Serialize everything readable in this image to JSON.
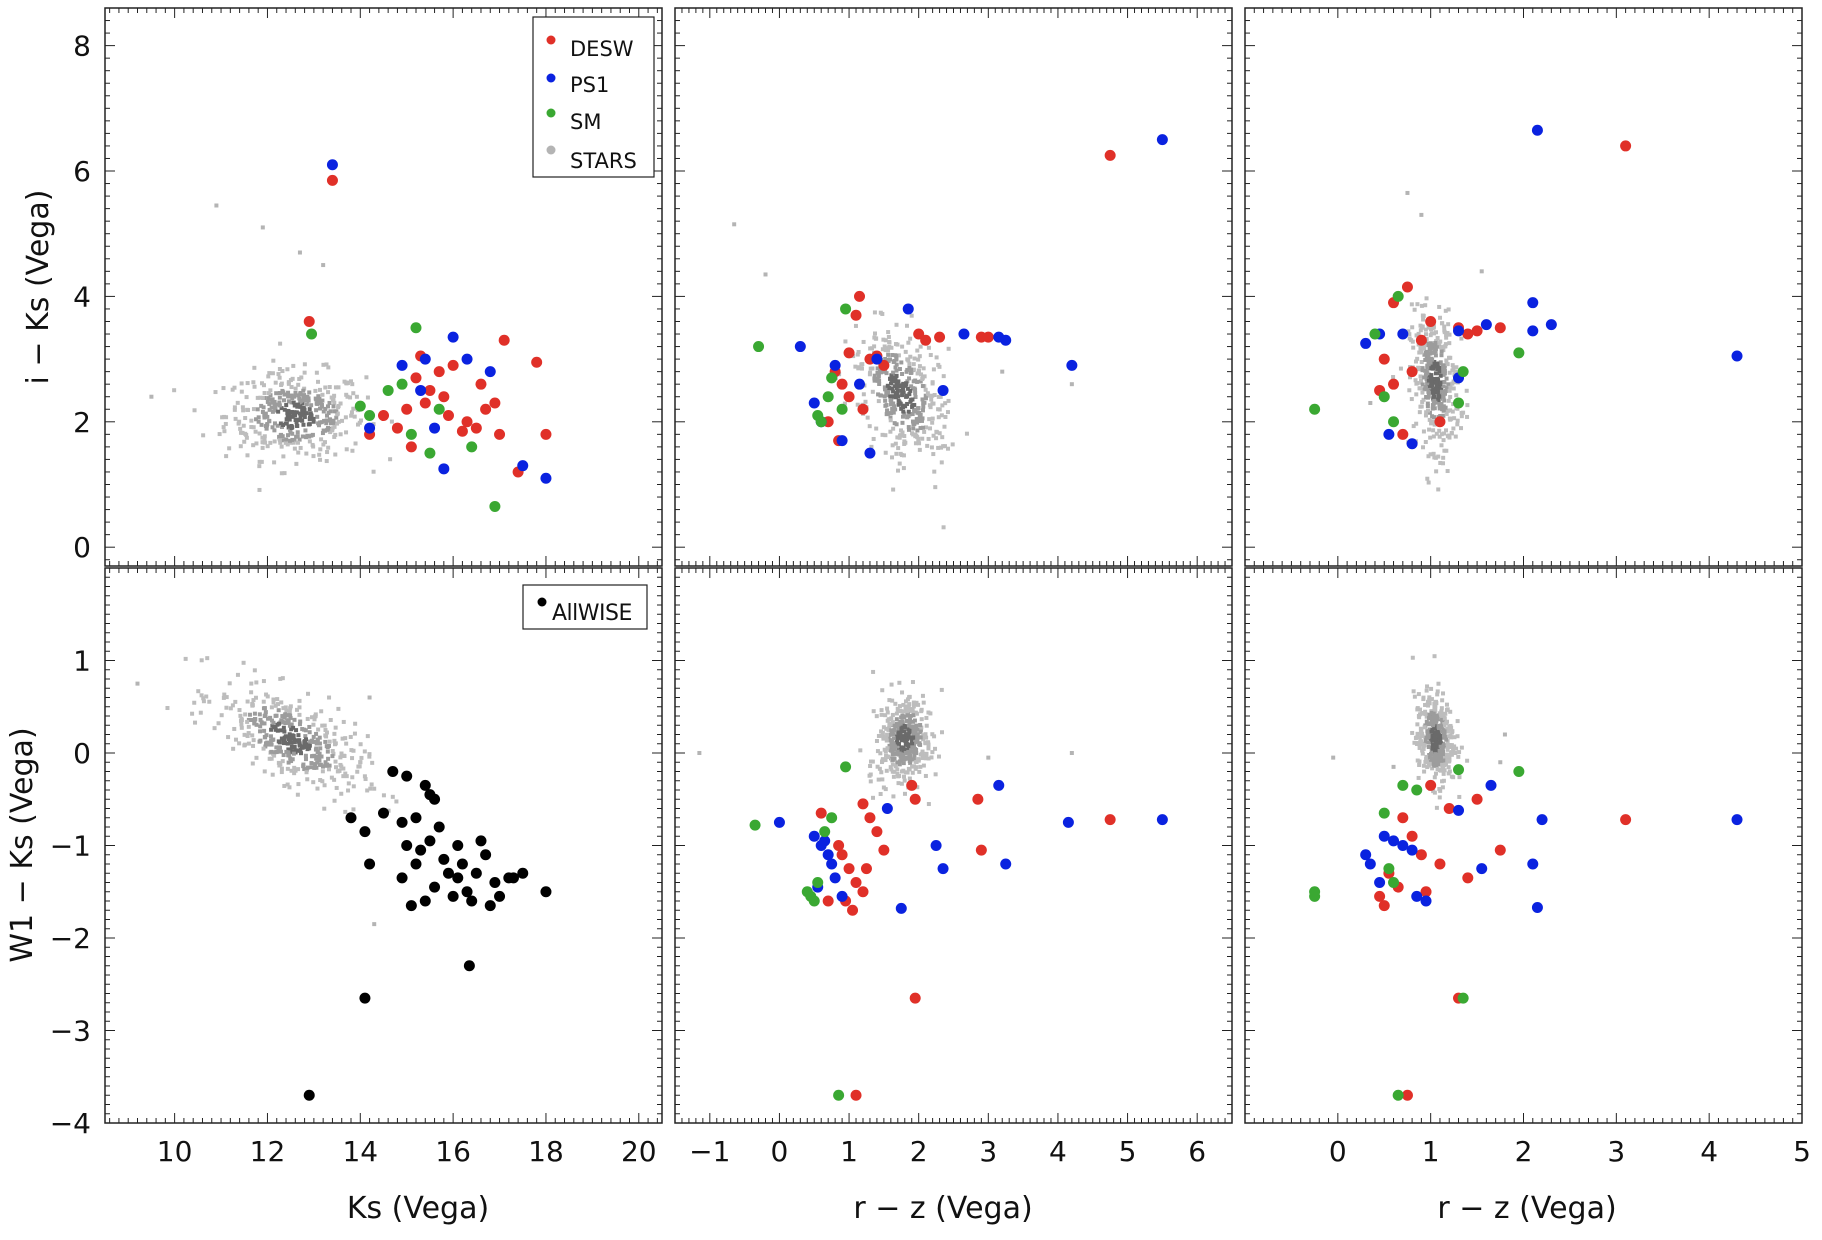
{
  "colors": {
    "DESW": "#e03028",
    "PS1": "#0a22e0",
    "SM": "#3aa832",
    "STARS": "#b4b4b4",
    "AllWISE": "#000000"
  },
  "chart_data": [
    {
      "type": "scatter",
      "panel": "top-left",
      "xlim": [
        8.5,
        20.5
      ],
      "ylim": [
        -0.3,
        8.6
      ],
      "xticks": [
        10,
        12,
        14,
        16,
        18,
        20
      ],
      "yticks": [
        0,
        2,
        4,
        6,
        8
      ],
      "xlabel": "",
      "ylabel": "i − Ks (Vega)",
      "legend": [
        "DESW",
        "PS1",
        "SM",
        "STARS"
      ],
      "legend_position": "top-right",
      "series": [
        {
          "name": "DESW",
          "x": [
            13.4,
            12.9,
            15.2,
            15.5,
            15.8,
            16.3,
            16.7,
            17.0,
            15.0,
            14.5,
            14.2,
            16.0,
            15.3,
            15.7,
            16.5,
            17.1,
            16.9,
            15.1,
            15.9,
            16.2,
            14.8,
            17.8,
            18.0,
            17.4,
            16.6,
            15.4
          ],
          "y": [
            5.85,
            3.6,
            2.7,
            2.5,
            2.4,
            2.0,
            2.2,
            1.8,
            2.2,
            2.1,
            1.8,
            2.9,
            3.05,
            2.8,
            1.9,
            3.3,
            2.3,
            1.6,
            2.1,
            1.85,
            1.9,
            2.95,
            1.8,
            1.2,
            2.6,
            2.3
          ]
        },
        {
          "name": "PS1",
          "x": [
            13.4,
            16.0,
            16.8,
            14.9,
            15.3,
            15.6,
            16.3,
            17.5,
            18.0,
            15.8,
            15.4,
            14.2
          ],
          "y": [
            6.1,
            3.35,
            2.8,
            2.9,
            2.5,
            1.9,
            3.0,
            1.3,
            1.1,
            1.25,
            3.0,
            1.9
          ]
        },
        {
          "name": "SM",
          "x": [
            12.95,
            15.2,
            14.0,
            14.2,
            14.6,
            14.9,
            15.1,
            15.5,
            16.4,
            16.9,
            15.7
          ],
          "y": [
            3.4,
            3.5,
            2.25,
            2.1,
            2.5,
            2.6,
            1.8,
            1.5,
            1.6,
            0.65,
            2.2
          ]
        },
        {
          "name": "STARS",
          "x": [
            10.9,
            11.9,
            12.7,
            13.2,
            9.5
          ],
          "y": [
            5.45,
            5.1,
            4.7,
            4.5,
            2.4
          ]
        }
      ]
    },
    {
      "type": "scatter",
      "panel": "top-middle",
      "xlim": [
        -1.5,
        6.5
      ],
      "ylim": [
        -0.3,
        8.6
      ],
      "xticks": [
        -1,
        0,
        1,
        2,
        3,
        4,
        5,
        6
      ],
      "yticks": [
        0,
        2,
        4,
        6,
        8
      ],
      "series": [
        {
          "name": "DESW",
          "x": [
            4.75,
            1.15,
            1.1,
            1.0,
            1.3,
            1.5,
            0.8,
            0.9,
            1.0,
            2.3,
            2.9,
            3.0,
            2.0,
            1.2,
            0.7,
            0.85,
            1.4,
            2.1
          ],
          "y": [
            6.25,
            4.0,
            3.7,
            3.1,
            3.0,
            2.9,
            2.8,
            2.6,
            2.4,
            3.35,
            3.35,
            3.35,
            3.4,
            2.2,
            2.0,
            1.7,
            3.05,
            3.3
          ]
        },
        {
          "name": "PS1",
          "x": [
            5.5,
            0.3,
            1.85,
            1.4,
            3.25,
            3.15,
            2.65,
            2.35,
            4.2,
            0.8,
            0.5,
            1.15,
            0.6,
            0.9,
            1.3
          ],
          "y": [
            6.5,
            3.2,
            3.8,
            3.0,
            3.3,
            3.35,
            3.4,
            2.5,
            2.9,
            2.9,
            2.3,
            2.6,
            2.0,
            1.7,
            1.5
          ]
        },
        {
          "name": "SM",
          "x": [
            -0.3,
            0.95,
            0.55,
            0.75,
            0.7,
            0.6,
            0.9
          ],
          "y": [
            3.2,
            3.8,
            2.1,
            2.7,
            2.4,
            2.0,
            2.2
          ]
        },
        {
          "name": "STARS",
          "x": [
            -0.65,
            -0.2,
            3.2,
            4.2
          ],
          "y": [
            5.15,
            4.35,
            2.8,
            2.6
          ]
        }
      ]
    },
    {
      "type": "scatter",
      "panel": "top-right",
      "xlim": [
        -1.0,
        5.0
      ],
      "ylim": [
        -0.3,
        8.6
      ],
      "xticks": [
        0,
        1,
        2,
        3,
        4,
        5
      ],
      "yticks": [
        0,
        2,
        4,
        6,
        8
      ],
      "series": [
        {
          "name": "DESW",
          "x": [
            3.1,
            0.75,
            0.6,
            1.0,
            1.4,
            1.75,
            0.9,
            0.5,
            0.8,
            0.45,
            1.1,
            1.3,
            0.6,
            0.7,
            1.5
          ],
          "y": [
            6.4,
            4.15,
            3.9,
            3.6,
            3.4,
            3.5,
            3.3,
            3.0,
            2.8,
            2.5,
            2.0,
            3.5,
            2.6,
            1.8,
            3.45
          ]
        },
        {
          "name": "PS1",
          "x": [
            2.15,
            2.1,
            2.3,
            4.3,
            1.6,
            0.3,
            0.45,
            0.7,
            1.3,
            2.1,
            0.55,
            0.8,
            1.3
          ],
          "y": [
            6.65,
            3.9,
            3.55,
            3.05,
            3.55,
            3.25,
            3.4,
            3.4,
            2.7,
            3.45,
            1.8,
            1.65,
            3.45
          ]
        },
        {
          "name": "SM",
          "x": [
            0.65,
            -0.25,
            1.95,
            0.5,
            0.6,
            1.35,
            1.3,
            0.4
          ],
          "y": [
            4.0,
            2.2,
            3.1,
            2.4,
            2.0,
            2.8,
            2.3,
            3.4
          ]
        },
        {
          "name": "STARS",
          "x": [
            0.75,
            0.9,
            1.55,
            0.35
          ],
          "y": [
            5.65,
            5.3,
            4.4,
            2.3
          ]
        }
      ]
    },
    {
      "type": "scatter",
      "panel": "bottom-left",
      "xlim": [
        8.5,
        20.5
      ],
      "ylim": [
        -4.0,
        2.0
      ],
      "xticks": [
        10,
        12,
        14,
        16,
        18,
        20
      ],
      "yticks": [
        -4,
        -3,
        -2,
        -1,
        0,
        1
      ],
      "xlabel": "Ks (Vega)",
      "ylabel": "W1 − Ks (Vega)",
      "legend": [
        "AllWISE"
      ],
      "legend_position": "top-right",
      "series": [
        {
          "name": "AllWISE",
          "x": [
            14.7,
            15.0,
            15.4,
            15.5,
            15.6,
            14.5,
            14.9,
            15.2,
            15.7,
            16.1,
            16.7,
            13.8,
            14.1,
            15.0,
            15.3,
            15.8,
            16.2,
            16.5,
            16.9,
            17.2,
            17.5,
            18.0,
            14.1,
            16.35,
            12.9,
            14.9,
            15.6,
            16.0,
            16.4,
            16.8,
            17.0,
            15.2,
            16.1,
            15.5,
            16.6,
            14.2,
            15.9,
            15.1,
            16.3,
            17.3,
            15.4
          ],
          "y": [
            -0.2,
            -0.25,
            -0.35,
            -0.45,
            -0.5,
            -0.65,
            -0.75,
            -0.7,
            -0.8,
            -1.0,
            -1.1,
            -0.7,
            -0.85,
            -1.0,
            -1.05,
            -1.15,
            -1.2,
            -1.3,
            -1.4,
            -1.35,
            -1.3,
            -1.5,
            -2.65,
            -2.3,
            -3.7,
            -1.35,
            -1.45,
            -1.55,
            -1.6,
            -1.65,
            -1.55,
            -1.2,
            -1.35,
            -0.95,
            -0.95,
            -1.2,
            -1.3,
            -1.65,
            -1.5,
            -1.35,
            -1.6
          ]
        },
        {
          "name": "STARS",
          "x": [
            9.2,
            14.2,
            14.3
          ],
          "y": [
            0.75,
            0.6,
            -1.85
          ]
        }
      ]
    },
    {
      "type": "scatter",
      "panel": "bottom-middle",
      "xlim": [
        -1.5,
        6.5
      ],
      "ylim": [
        -4.0,
        2.0
      ],
      "xticks": [
        -1,
        0,
        1,
        2,
        3,
        4,
        5,
        6
      ],
      "yticks": [
        -4,
        -3,
        -2,
        -1,
        0,
        1
      ],
      "xlabel": "r − z (Vega)",
      "series": [
        {
          "name": "DESW",
          "x": [
            4.75,
            1.95,
            1.1,
            1.9,
            1.95,
            2.85,
            2.9,
            1.2,
            1.3,
            1.4,
            0.9,
            1.0,
            1.1,
            1.2,
            0.7,
            0.6,
            0.85,
            0.95,
            1.05,
            1.5,
            1.25
          ],
          "y": [
            -0.72,
            -2.65,
            -3.7,
            -0.35,
            -0.5,
            -0.5,
            -1.05,
            -0.55,
            -0.7,
            -0.85,
            -1.1,
            -1.25,
            -1.4,
            -1.5,
            -1.6,
            -0.65,
            -1.0,
            -1.6,
            -1.7,
            -1.05,
            -1.25
          ]
        },
        {
          "name": "PS1",
          "x": [
            5.5,
            4.15,
            3.15,
            3.25,
            2.25,
            2.35,
            1.75,
            0.0,
            0.5,
            0.6,
            0.7,
            0.75,
            0.8,
            0.55,
            0.9,
            1.55,
            0.65
          ],
          "y": [
            -0.72,
            -0.75,
            -0.35,
            -1.2,
            -1.0,
            -1.25,
            -1.68,
            -0.75,
            -0.9,
            -1.0,
            -1.1,
            -1.2,
            -1.35,
            -1.45,
            -1.55,
            -0.6,
            -0.95
          ]
        },
        {
          "name": "SM",
          "x": [
            -0.35,
            0.4,
            0.45,
            0.5,
            0.85,
            0.95,
            0.55,
            0.65,
            0.75
          ],
          "y": [
            -0.78,
            -1.5,
            -1.55,
            -1.6,
            -3.7,
            -0.15,
            -1.4,
            -0.85,
            -0.7
          ]
        },
        {
          "name": "STARS",
          "x": [
            -1.15,
            3.0,
            4.2
          ],
          "y": [
            0.0,
            -0.05,
            0.0
          ]
        }
      ]
    },
    {
      "type": "scatter",
      "panel": "bottom-right",
      "xlim": [
        -1.0,
        5.0
      ],
      "ylim": [
        -4.0,
        2.0
      ],
      "xticks": [
        0,
        1,
        2,
        3,
        4,
        5
      ],
      "yticks": [
        -4,
        -3,
        -2,
        -1,
        0,
        1
      ],
      "xlabel": "r − z (Vega)",
      "series": [
        {
          "name": "DESW",
          "x": [
            3.1,
            1.3,
            0.75,
            1.0,
            1.2,
            1.5,
            1.75,
            0.7,
            0.8,
            0.9,
            0.55,
            0.45,
            0.5,
            0.65,
            1.4,
            1.1,
            0.95
          ],
          "y": [
            -0.72,
            -2.65,
            -3.7,
            -0.35,
            -0.6,
            -0.5,
            -1.05,
            -0.7,
            -0.9,
            -1.1,
            -1.3,
            -1.55,
            -1.65,
            -1.45,
            -1.35,
            -1.2,
            -1.5
          ]
        },
        {
          "name": "PS1",
          "x": [
            4.3,
            2.2,
            2.1,
            2.15,
            1.65,
            1.55,
            1.3,
            0.3,
            0.35,
            0.5,
            0.6,
            0.7,
            0.8,
            0.45,
            0.85,
            0.95
          ],
          "y": [
            -0.72,
            -0.72,
            -1.2,
            -1.67,
            -0.35,
            -1.25,
            -0.62,
            -1.1,
            -1.2,
            -0.9,
            -0.95,
            -1.0,
            -1.05,
            -1.4,
            -1.55,
            -1.6
          ]
        },
        {
          "name": "SM",
          "x": [
            -0.25,
            -0.25,
            1.35,
            1.3,
            1.95,
            0.65,
            0.55,
            0.6,
            0.7,
            0.5,
            0.85
          ],
          "y": [
            -1.5,
            -1.55,
            -2.65,
            -0.18,
            -0.2,
            -3.7,
            -1.25,
            -1.4,
            -0.35,
            -0.65,
            -0.4
          ]
        },
        {
          "name": "STARS",
          "x": [
            -0.05,
            0.6,
            1.8,
            1.75
          ],
          "y": [
            -0.05,
            -0.15,
            0.2,
            -0.1
          ]
        }
      ]
    }
  ]
}
